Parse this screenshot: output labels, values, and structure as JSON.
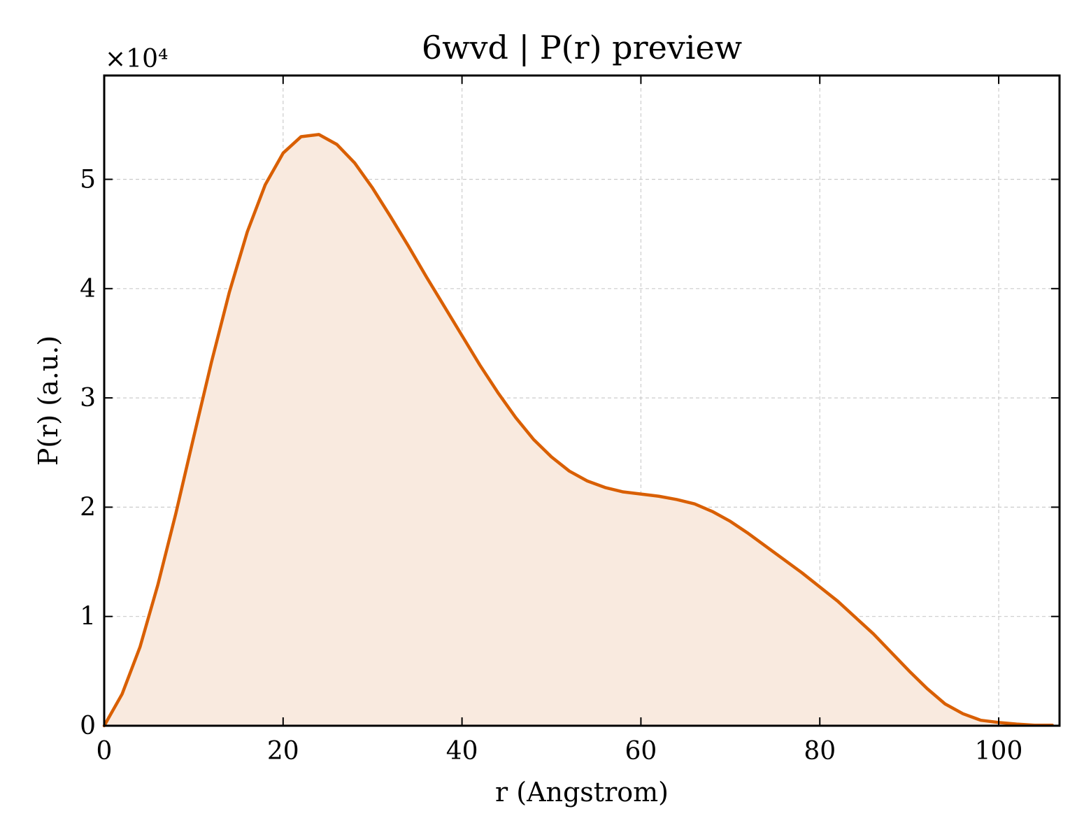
{
  "chart_data": {
    "type": "area",
    "title": "6wvd | P(r) preview",
    "xlabel": "r (Angstrom)",
    "ylabel": "P(r) (a.u.)",
    "y_multiplier_label": "×10⁴",
    "y_scale": 10000,
    "xlim": [
      0,
      106.8
    ],
    "ylim": [
      0,
      5.95
    ],
    "x_ticks": [
      0,
      20,
      40,
      60,
      80,
      100
    ],
    "y_ticks": [
      0,
      1,
      2,
      3,
      4,
      5
    ],
    "grid": true,
    "tick_direction": "in",
    "line_color": "#d95f02",
    "fill_color": "#f9eadf",
    "series": [
      {
        "x": [
          0,
          2,
          4,
          6,
          8,
          10,
          12,
          14,
          16,
          18,
          20,
          22,
          24,
          26,
          28,
          30,
          32,
          34,
          36,
          38,
          40,
          42,
          44,
          46,
          48,
          50,
          52,
          54,
          56,
          58,
          60,
          62,
          64,
          66,
          68,
          70,
          72,
          74,
          76,
          78,
          80,
          82,
          84,
          86,
          88,
          90,
          92,
          94,
          96,
          98,
          100,
          102,
          104,
          106
        ],
        "values": [
          0,
          0.29,
          0.72,
          1.29,
          1.94,
          2.64,
          3.33,
          3.97,
          4.52,
          4.95,
          5.24,
          5.39,
          5.41,
          5.32,
          5.15,
          4.92,
          4.66,
          4.39,
          4.11,
          3.84,
          3.57,
          3.3,
          3.05,
          2.82,
          2.62,
          2.46,
          2.33,
          2.24,
          2.18,
          2.14,
          2.12,
          2.1,
          2.07,
          2.03,
          1.96,
          1.87,
          1.76,
          1.64,
          1.52,
          1.4,
          1.27,
          1.14,
          0.99,
          0.84,
          0.67,
          0.5,
          0.34,
          0.2,
          0.11,
          0.05,
          0.03,
          0.015,
          0.005,
          0.005
        ]
      }
    ]
  }
}
